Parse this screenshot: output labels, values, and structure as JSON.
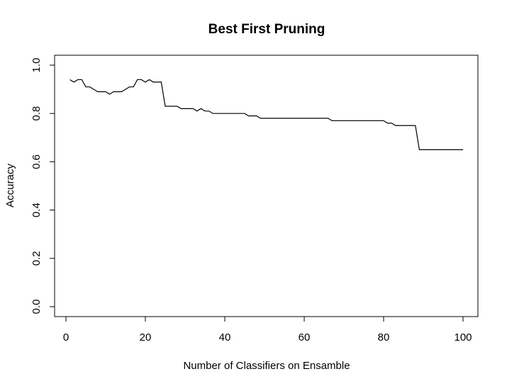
{
  "chart_data": {
    "type": "line",
    "title": "Best First Pruning",
    "xlabel": "Number of Classifiers on Ensamble",
    "ylabel": "Accuracy",
    "xlim": [
      0,
      100
    ],
    "ylim": [
      0.0,
      1.0
    ],
    "x_ticks": [
      0,
      20,
      40,
      60,
      80,
      100
    ],
    "y_ticks": [
      0.0,
      0.2,
      0.4,
      0.6,
      0.8,
      1.0
    ],
    "x_tick_labels": [
      "0",
      "20",
      "40",
      "60",
      "80",
      "100"
    ],
    "y_tick_labels": [
      "0.0",
      "0.2",
      "0.4",
      "0.6",
      "0.8",
      "1.0"
    ],
    "grid": false,
    "line_color": "#000000",
    "series": [
      {
        "x": [
          1,
          2,
          3,
          4,
          5,
          6,
          7,
          8,
          9,
          10,
          11,
          12,
          13,
          14,
          15,
          16,
          17,
          18,
          19,
          20,
          21,
          22,
          23,
          24,
          25,
          26,
          27,
          28,
          29,
          30,
          31,
          32,
          33,
          34,
          35,
          36,
          37,
          38,
          39,
          40,
          41,
          42,
          43,
          44,
          45,
          46,
          47,
          48,
          49,
          50,
          51,
          52,
          53,
          54,
          55,
          56,
          57,
          58,
          59,
          60,
          61,
          62,
          63,
          64,
          65,
          66,
          67,
          68,
          69,
          70,
          71,
          72,
          73,
          74,
          75,
          76,
          77,
          78,
          79,
          80,
          81,
          82,
          83,
          84,
          85,
          86,
          87,
          88,
          89,
          90,
          91,
          92,
          93,
          94,
          95,
          96,
          97,
          98,
          99,
          100
        ],
        "y": [
          0.94,
          0.93,
          0.94,
          0.94,
          0.91,
          0.91,
          0.9,
          0.89,
          0.89,
          0.89,
          0.88,
          0.89,
          0.89,
          0.89,
          0.9,
          0.91,
          0.91,
          0.94,
          0.94,
          0.93,
          0.94,
          0.93,
          0.93,
          0.93,
          0.83,
          0.83,
          0.83,
          0.83,
          0.82,
          0.82,
          0.82,
          0.82,
          0.81,
          0.82,
          0.81,
          0.81,
          0.8,
          0.8,
          0.8,
          0.8,
          0.8,
          0.8,
          0.8,
          0.8,
          0.8,
          0.79,
          0.79,
          0.79,
          0.78,
          0.78,
          0.78,
          0.78,
          0.78,
          0.78,
          0.78,
          0.78,
          0.78,
          0.78,
          0.78,
          0.78,
          0.78,
          0.78,
          0.78,
          0.78,
          0.78,
          0.78,
          0.77,
          0.77,
          0.77,
          0.77,
          0.77,
          0.77,
          0.77,
          0.77,
          0.77,
          0.77,
          0.77,
          0.77,
          0.77,
          0.77,
          0.76,
          0.76,
          0.75,
          0.75,
          0.75,
          0.75,
          0.75,
          0.75,
          0.65,
          0.65,
          0.65,
          0.65,
          0.65,
          0.65,
          0.65,
          0.65,
          0.65,
          0.65,
          0.65,
          0.65
        ]
      }
    ]
  }
}
